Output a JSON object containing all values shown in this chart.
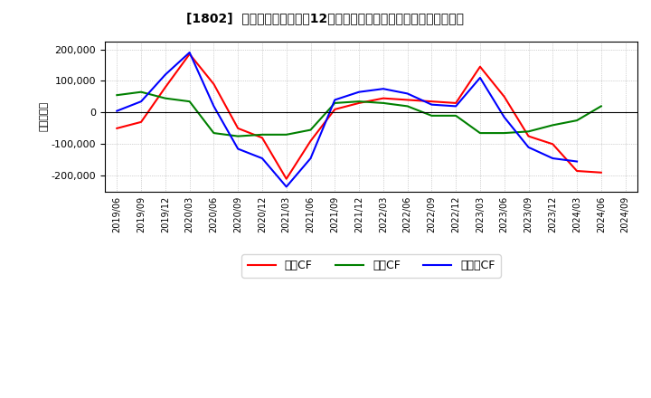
{
  "title_prefix": "[1802]",
  "title_main": "キャッシュフローの12か月移動合計の対前年同期増減額の推移",
  "ylabel": "（百万円）",
  "ylim": [
    -250000,
    225000
  ],
  "yticks": [
    -200000,
    -100000,
    0,
    100000,
    200000
  ],
  "background_color": "#ffffff",
  "plot_bg_color": "#ffffff",
  "grid_color": "#aaaaaa",
  "line_color_operating": "#ff0000",
  "line_color_investing": "#008000",
  "line_color_free": "#0000ff",
  "line_width": 1.5,
  "legend_operating": "営業CF",
  "legend_investing": "投資CF",
  "legend_free": "フリーCF",
  "dates": [
    "2019/06",
    "2019/09",
    "2019/12",
    "2020/03",
    "2020/06",
    "2020/09",
    "2020/12",
    "2021/03",
    "2021/06",
    "2021/09",
    "2021/12",
    "2022/03",
    "2022/06",
    "2022/09",
    "2022/12",
    "2023/03",
    "2023/06",
    "2023/09",
    "2023/12",
    "2024/03",
    "2024/06",
    "2024/09"
  ],
  "operating_cf": [
    -50000,
    -30000,
    80000,
    185000,
    90000,
    -50000,
    -80000,
    -210000,
    -90000,
    10000,
    30000,
    45000,
    40000,
    35000,
    30000,
    145000,
    50000,
    -75000,
    -100000,
    -185000,
    -190000,
    null
  ],
  "investing_cf": [
    55000,
    65000,
    45000,
    35000,
    -65000,
    -75000,
    -70000,
    -70000,
    -55000,
    30000,
    35000,
    30000,
    20000,
    -10000,
    -10000,
    -65000,
    -65000,
    -60000,
    -40000,
    -25000,
    20000,
    null
  ],
  "free_cf": [
    5000,
    35000,
    120000,
    190000,
    20000,
    -115000,
    -145000,
    -235000,
    -145000,
    40000,
    65000,
    75000,
    60000,
    25000,
    20000,
    110000,
    -15000,
    -110000,
    -145000,
    -155000,
    null,
    null
  ]
}
